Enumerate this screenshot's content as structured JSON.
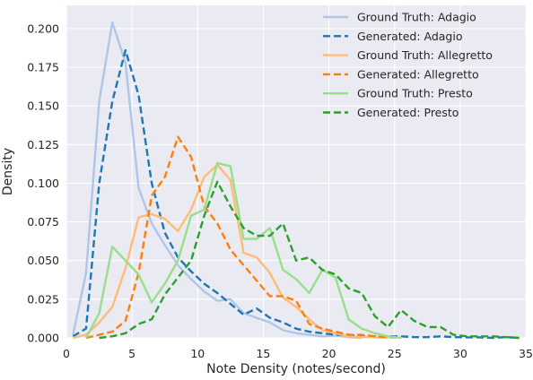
{
  "chart_data": {
    "type": "line",
    "title": "",
    "xlabel": "Note Density (notes/second)",
    "ylabel": "Density",
    "xlim": [
      0,
      35
    ],
    "ylim": [
      0,
      0.215
    ],
    "xticks": [
      0,
      5,
      10,
      15,
      20,
      25,
      30,
      35
    ],
    "yticks": [
      0.0,
      0.025,
      0.05,
      0.075,
      0.1,
      0.125,
      0.15,
      0.175,
      0.2
    ],
    "xtick_labels": [
      "0",
      "5",
      "10",
      "15",
      "20",
      "25",
      "30",
      "35"
    ],
    "ytick_labels": [
      "0.000",
      "0.025",
      "0.050",
      "0.075",
      "0.100",
      "0.125",
      "0.150",
      "0.175",
      "0.200"
    ],
    "grid": true,
    "background": "#eaeaf2",
    "legend_position": "top-right",
    "series": [
      {
        "name": "Ground Truth: Adagio",
        "color": "#aec7e8",
        "dash": "solid",
        "x": [
          0.5,
          1.5,
          2.5,
          3.5,
          4.5,
          5.5,
          6.5,
          7.5,
          8.5,
          9.5,
          10.5,
          11.5,
          12.5,
          13.5,
          14.5,
          15.5,
          16.5,
          17.5,
          18.5,
          19.5,
          20.5,
          21.5,
          22.5
        ],
        "y": [
          0.002,
          0.042,
          0.153,
          0.204,
          0.178,
          0.097,
          0.074,
          0.06,
          0.047,
          0.038,
          0.03,
          0.024,
          0.025,
          0.016,
          0.013,
          0.01,
          0.005,
          0.003,
          0.002,
          0.001,
          0.0015,
          0.0005,
          0.0
        ]
      },
      {
        "name": "Generated: Adagio",
        "color": "#1f77b4",
        "dash": "dashed",
        "x": [
          0.5,
          1.5,
          2.5,
          3.5,
          4.5,
          5.5,
          6.5,
          7.5,
          8.5,
          9.5,
          10.5,
          11.5,
          12.5,
          13.5,
          14.5,
          15.5,
          16.5,
          17.5,
          18.5,
          19.5,
          20.5,
          21.5,
          22.5,
          23.5,
          24.5,
          25.5,
          26.5,
          27.5,
          28.5,
          29.5,
          30.5,
          31.5,
          32.5,
          33.5,
          34.5
        ],
        "y": [
          0.001,
          0.006,
          0.1,
          0.153,
          0.186,
          0.157,
          0.1,
          0.068,
          0.052,
          0.043,
          0.035,
          0.029,
          0.022,
          0.015,
          0.019,
          0.013,
          0.01,
          0.006,
          0.004,
          0.003,
          0.002,
          0.002,
          0.001,
          0.001,
          0.001,
          0.001,
          0.0005,
          0.0005,
          0.001,
          0.0005,
          0.0003,
          0.0003,
          0.0,
          0.0005,
          0.0
        ]
      },
      {
        "name": "Ground Truth: Allegretto",
        "color": "#ffbb78",
        "dash": "solid",
        "x": [
          0.5,
          1.5,
          2.5,
          3.5,
          4.5,
          5.5,
          6.5,
          7.5,
          8.5,
          9.5,
          10.5,
          11.5,
          12.5,
          13.5,
          14.5,
          15.5,
          16.5,
          17.5,
          18.5,
          19.5,
          20.5,
          21.5,
          22.5,
          23.5,
          24.5
        ],
        "y": [
          0.0,
          0.002,
          0.01,
          0.02,
          0.045,
          0.078,
          0.08,
          0.077,
          0.069,
          0.083,
          0.104,
          0.112,
          0.102,
          0.055,
          0.052,
          0.042,
          0.026,
          0.02,
          0.012,
          0.005,
          0.003,
          0.001,
          0.0005,
          0.0005,
          0.0
        ]
      },
      {
        "name": "Generated: Allegretto",
        "color": "#ff7f0e",
        "dash": "dashed",
        "x": [
          1.5,
          2.5,
          3.5,
          4.5,
          5.5,
          6.5,
          7.5,
          8.5,
          9.5,
          10.5,
          11.5,
          12.5,
          13.5,
          14.5,
          15.5,
          16.5,
          17.5,
          18.5,
          19.5,
          20.5,
          21.5,
          22.5,
          23.5,
          24.5,
          25.5
        ],
        "y": [
          0.0,
          0.002,
          0.004,
          0.011,
          0.042,
          0.092,
          0.104,
          0.13,
          0.117,
          0.085,
          0.074,
          0.057,
          0.047,
          0.037,
          0.027,
          0.027,
          0.024,
          0.009,
          0.006,
          0.004,
          0.002,
          0.002,
          0.001,
          0.0005,
          0.0
        ]
      },
      {
        "name": "Ground Truth: Presto",
        "color": "#98df8a",
        "dash": "solid",
        "x": [
          1.5,
          2.5,
          3.5,
          4.5,
          5.5,
          6.5,
          7.5,
          8.5,
          9.5,
          10.5,
          11.5,
          12.5,
          13.5,
          14.5,
          15.5,
          16.5,
          17.5,
          18.5,
          19.5,
          20.5,
          21.5,
          22.5,
          23.5,
          24.5,
          25.5
        ],
        "y": [
          0.0,
          0.016,
          0.059,
          0.05,
          0.041,
          0.023,
          0.035,
          0.05,
          0.079,
          0.083,
          0.113,
          0.111,
          0.064,
          0.064,
          0.071,
          0.044,
          0.038,
          0.029,
          0.044,
          0.039,
          0.012,
          0.006,
          0.003,
          0.001,
          0.0
        ]
      },
      {
        "name": "Generated: Presto",
        "color": "#2ca02c",
        "dash": "dashed",
        "x": [
          2.5,
          3.5,
          4.5,
          5.5,
          6.5,
          7.5,
          8.5,
          9.5,
          10.5,
          11.5,
          12.5,
          13.5,
          14.5,
          15.5,
          16.5,
          17.5,
          18.5,
          19.5,
          20.5,
          21.5,
          22.5,
          23.5,
          24.5,
          25.5,
          26.5,
          27.5,
          28.5,
          29.5,
          30.5,
          31.5,
          32.5,
          33.5,
          34.5
        ],
        "y": [
          0.0,
          0.001,
          0.003,
          0.009,
          0.012,
          0.028,
          0.039,
          0.05,
          0.079,
          0.101,
          0.085,
          0.071,
          0.066,
          0.066,
          0.074,
          0.05,
          0.052,
          0.044,
          0.041,
          0.032,
          0.029,
          0.014,
          0.007,
          0.018,
          0.011,
          0.007,
          0.007,
          0.002,
          0.001,
          0.001,
          0.001,
          0.0005,
          0.0
        ]
      }
    ]
  }
}
